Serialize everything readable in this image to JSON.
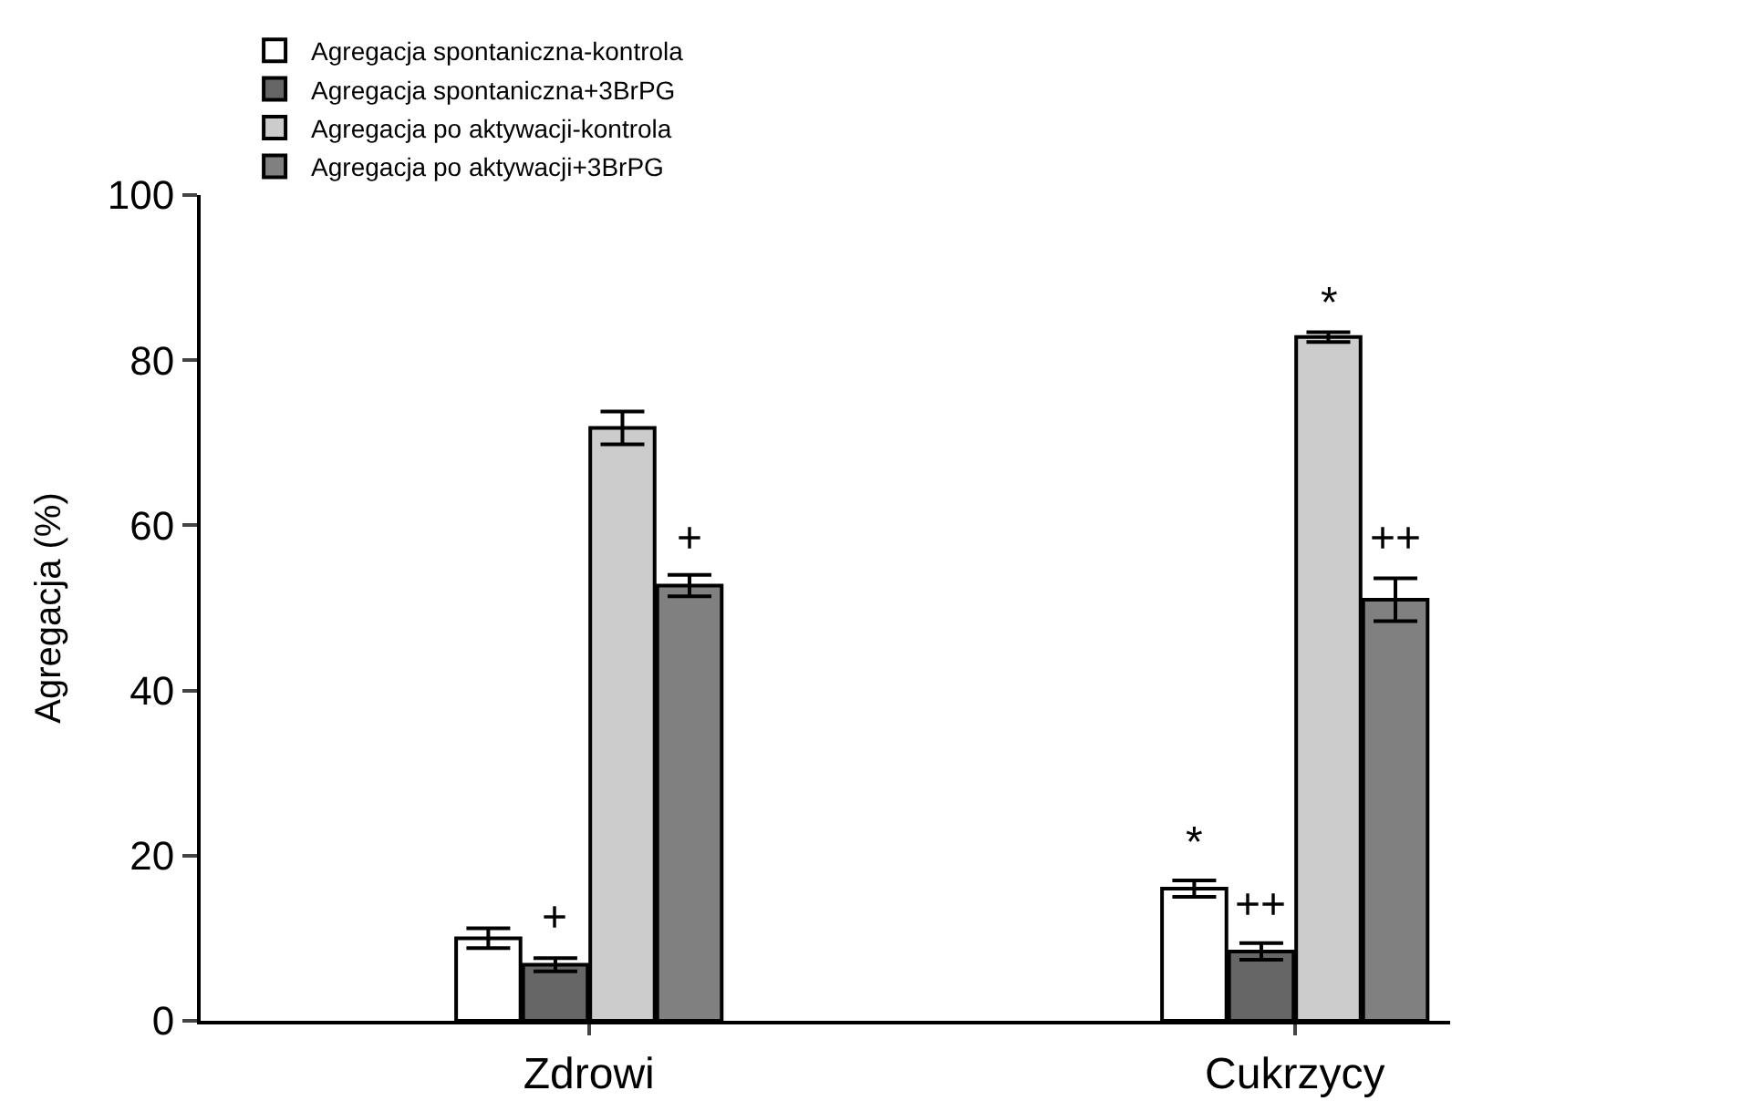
{
  "chart_data": {
    "type": "bar",
    "ylabel": "Agregacja (%)",
    "categories": [
      "Zdrowi",
      "Cukrzycy"
    ],
    "series": [
      {
        "name": "Agregacja spontaniczna-kontrola",
        "color": "#ffffff",
        "values": [
          10.0,
          16.0
        ],
        "errors": [
          1.2,
          1.0
        ]
      },
      {
        "name": "Agregacja spontaniczna+3BrPG",
        "color": "#666666",
        "values": [
          6.8,
          8.4
        ],
        "errors": [
          0.8,
          1.0
        ]
      },
      {
        "name": "Agregacja po aktywacji-kontrola",
        "color": "#cccccc",
        "values": [
          71.8,
          82.8
        ],
        "errors": [
          2.0,
          0.6
        ]
      },
      {
        "name": "Agregacja po aktywacji+3BrPG",
        "color": "#808080",
        "values": [
          52.7,
          51.0
        ],
        "errors": [
          1.3,
          2.6
        ]
      }
    ],
    "ylim": [
      0,
      100
    ],
    "yticks": [
      0,
      20,
      40,
      60,
      80,
      100
    ],
    "grid": false,
    "legend": "top",
    "annotations": [
      {
        "text": "+",
        "x": "Zdrowi",
        "y": 9
      },
      {
        "text": "+",
        "x": "Zdrowi",
        "y": 55
      },
      {
        "text": "*",
        "x": "Cukrzycy",
        "y": 18
      },
      {
        "text": "++",
        "x": "Cukrzycy",
        "y": 10.5
      },
      {
        "text": "*",
        "x": "Cukrzycy",
        "y": 83.5
      },
      {
        "text": "++",
        "x": "Cukrzycy",
        "y": 55
      }
    ]
  }
}
